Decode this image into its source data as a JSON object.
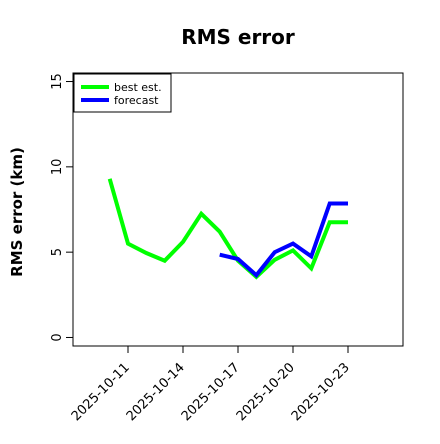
{
  "chart_data": {
    "type": "line",
    "title": "RMS error",
    "xlabel": "",
    "ylabel": "RMS error (km)",
    "x_axis_type": "date",
    "xlim": [
      "2025-10-08",
      "2025-10-26"
    ],
    "ylim": [
      -0.5,
      15.5
    ],
    "xticks": [
      "2025-10-11",
      "2025-10-14",
      "2025-10-17",
      "2025-10-20",
      "2025-10-23"
    ],
    "yticks": [
      0,
      5,
      10,
      15
    ],
    "grid": false,
    "legend_position": "top-left",
    "series": [
      {
        "name": "best est.",
        "color": "#00ff00",
        "points": [
          {
            "x": "2025-10-10",
            "y": 9.3
          },
          {
            "x": "2025-10-11",
            "y": 5.5
          },
          {
            "x": "2025-10-12",
            "y": 4.95
          },
          {
            "x": "2025-10-13",
            "y": 4.5
          },
          {
            "x": "2025-10-14",
            "y": 5.6
          },
          {
            "x": "2025-10-15",
            "y": 7.25
          },
          {
            "x": "2025-10-16",
            "y": 6.2
          },
          {
            "x": "2025-10-17",
            "y": 4.5
          },
          {
            "x": "2025-10-18",
            "y": 3.55
          },
          {
            "x": "2025-10-19",
            "y": 4.55
          },
          {
            "x": "2025-10-20",
            "y": 5.1
          },
          {
            "x": "2025-10-21",
            "y": 4.05
          },
          {
            "x": "2025-10-22",
            "y": 6.75
          },
          {
            "x": "2025-10-23",
            "y": 6.75
          }
        ]
      },
      {
        "name": "forecast",
        "color": "#0000ff",
        "points": [
          {
            "x": "2025-10-16",
            "y": 4.85
          },
          {
            "x": "2025-10-17",
            "y": 4.6
          },
          {
            "x": "2025-10-18",
            "y": 3.65
          },
          {
            "x": "2025-10-19",
            "y": 5.0
          },
          {
            "x": "2025-10-20",
            "y": 5.5
          },
          {
            "x": "2025-10-21",
            "y": 4.75
          },
          {
            "x": "2025-10-22",
            "y": 7.85
          },
          {
            "x": "2025-10-23",
            "y": 7.85
          }
        ]
      }
    ]
  }
}
